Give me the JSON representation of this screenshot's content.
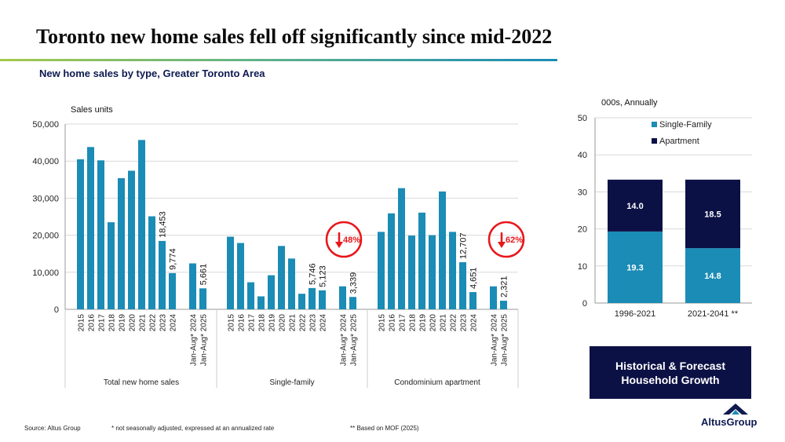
{
  "title": "Toronto new home sales fell off significantly since mid-2022",
  "subtitle": "New home sales by type, Greater Toronto Area",
  "colors": {
    "bar": "#1a8cb5",
    "apartment": "#0c1145",
    "callout": "#e8161b",
    "grid": "#d9d9d9"
  },
  "chart_data": [
    {
      "type": "bar",
      "ylabel": "Sales units",
      "ylim": [
        0,
        50000
      ],
      "yticks": [
        "0",
        "10,000",
        "20,000",
        "30,000",
        "40,000",
        "50,000"
      ],
      "groups": [
        {
          "label": "Total new home sales",
          "categories": [
            "2015",
            "2016",
            "2017",
            "2018",
            "2019",
            "2020",
            "2021",
            "2022",
            "2023",
            "2024",
            "Jan-Aug* 2024",
            "Jan-Aug* 2025"
          ],
          "values": [
            40500,
            43800,
            40200,
            23500,
            35400,
            37400,
            45700,
            25100,
            18453,
            9774,
            12400,
            5661
          ],
          "data_labels": [
            "",
            "",
            "",
            "",
            "",
            "",
            "",
            "",
            "18,453",
            "9,774",
            "",
            "5,661"
          ]
        },
        {
          "label": "Single-family",
          "categories": [
            "2015",
            "2016",
            "2017",
            "2018",
            "2019",
            "2020",
            "2021",
            "2022",
            "2023",
            "2024",
            "Jan-Aug* 2024",
            "Jan-Aug* 2025"
          ],
          "values": [
            19600,
            17900,
            7300,
            3500,
            9200,
            17100,
            13700,
            4200,
            5746,
            5123,
            6200,
            3339
          ],
          "data_labels": [
            "",
            "",
            "",
            "",
            "",
            "",
            "",
            "",
            "5,746",
            "5,123",
            "",
            "3,339"
          ],
          "callout": "48%"
        },
        {
          "label": "Condominium apartment",
          "categories": [
            "2015",
            "2016",
            "2017",
            "2018",
            "2019",
            "2020",
            "2021",
            "2022",
            "2023",
            "2024",
            "Jan-Aug* 2024",
            "Jan-Aug* 2025"
          ],
          "values": [
            20900,
            25900,
            32700,
            19900,
            26100,
            20000,
            31800,
            20900,
            12707,
            4651,
            6200,
            2321
          ],
          "data_labels": [
            "",
            "",
            "",
            "",
            "",
            "",
            "",
            "",
            "12,707",
            "4,651",
            "",
            "2,321"
          ],
          "callout": "62%"
        }
      ]
    },
    {
      "type": "bar",
      "stacked": true,
      "ylabel": "000s, Annually",
      "ylim": [
        0,
        50
      ],
      "yticks": [
        "0",
        "10",
        "20",
        "30",
        "40",
        "50"
      ],
      "categories": [
        "1996-2021",
        "2021-2041 **"
      ],
      "series": [
        {
          "name": "Single-Family",
          "values": [
            19.3,
            14.8
          ],
          "labels": [
            "19.3",
            "14.8"
          ]
        },
        {
          "name": "Apartment",
          "values": [
            14.0,
            18.5
          ],
          "labels": [
            "14.0",
            "18.5"
          ]
        }
      ],
      "legend": "top-left"
    }
  ],
  "box": {
    "line1": "Historical & Forecast",
    "line2": "Household Growth"
  },
  "footer": {
    "source": "Source:  Altus Group",
    "note1": "* not seasonally adjusted, expressed at an annualized rate",
    "note2": "** Based on MOF (2025)"
  },
  "logo": "AltusGroup"
}
